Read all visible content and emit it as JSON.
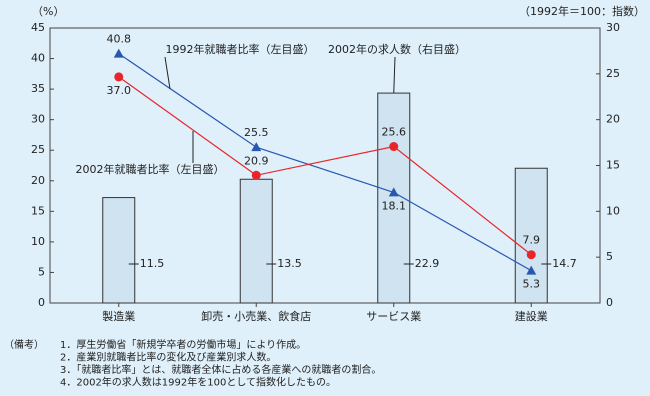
{
  "chart_data": {
    "type": "combo",
    "y_label": "（%）",
    "y2_label": "（1992年＝100：指数）",
    "categories": [
      "製造業",
      "卸売・小売業、飲食店",
      "サービス業",
      "建設業"
    ],
    "series": [
      {
        "name": "2002年の求人数（右目盛）",
        "type": "bar",
        "axis": "y2",
        "color": "#cfe3f1",
        "values": [
          11.5,
          13.5,
          22.9,
          14.7
        ]
      },
      {
        "name": "1992年就職者比率（左目盛）",
        "type": "line",
        "marker": "triangle",
        "color": "#2857b0",
        "values": [
          40.8,
          25.5,
          18.1,
          5.3
        ]
      },
      {
        "name": "2002年就職者比率（左目盛）",
        "type": "line",
        "marker": "circle",
        "color": "#e8262a",
        "values": [
          37,
          20.9,
          25.6,
          7.9
        ],
        "value_labels": [
          "37.0",
          "20.9",
          "25.6",
          "7.9"
        ]
      }
    ],
    "ylim": [
      0,
      45
    ],
    "yticks": [
      0,
      5,
      10,
      15,
      20,
      25,
      30,
      35,
      40,
      45
    ],
    "y2lim": [
      0,
      30
    ],
    "y2ticks": [
      0,
      5,
      10,
      15,
      20,
      25,
      30
    ]
  },
  "notes": {
    "label": "（備考）",
    "items": [
      "1．厚生労働省「新規学卒者の労働市場」により作成。",
      "2．産業別就職者比率の変化及び産業別求人数。",
      "3．「就職者比率」とは、就職者全体に占める各産業への就職者の割合。",
      "4．2002年の求人数は1992年を100として指数化したもの。"
    ]
  }
}
